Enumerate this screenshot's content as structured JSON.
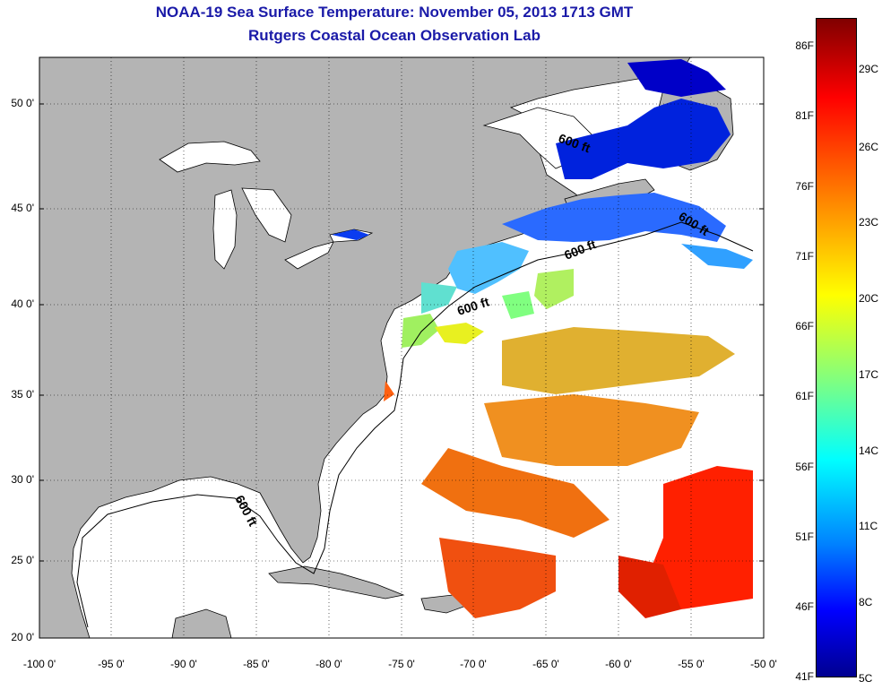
{
  "title": "NOAA-19 Sea Surface Temperature:  November 05, 2013 1713 GMT",
  "subtitle": "Rutgers Coastal Ocean Observation Lab",
  "lat_labels": [
    "50 0'",
    "45 0'",
    "40 0'",
    "35 0'",
    "30 0'",
    "25 0'",
    "20 0'"
  ],
  "lon_labels": [
    "-100 0'",
    "-95 0'",
    "-90 0'",
    "-85 0'",
    "-80 0'",
    "-75 0'",
    "-70 0'",
    "-65 0'",
    "-60 0'",
    "-55 0'",
    "-50 0'"
  ],
  "isobath_labels": [
    "600 ft",
    "600 ft",
    "600 ft",
    "600 ft",
    "600 ft"
  ],
  "colorbar": {
    "fahrenheit": [
      "86F",
      "81F",
      "76F",
      "71F",
      "66F",
      "61F",
      "56F",
      "51F",
      "46F",
      "41F"
    ],
    "celsius": [
      "29C",
      "26C",
      "23C",
      "20C",
      "17C",
      "14C",
      "11C",
      "8C",
      "5C"
    ]
  },
  "colors": {
    "land": "#b4b4b4",
    "ocean_no_data": "#ffffff",
    "title": "#1a1aa8",
    "cold": "#0000ff",
    "warm": "#ff2000"
  }
}
